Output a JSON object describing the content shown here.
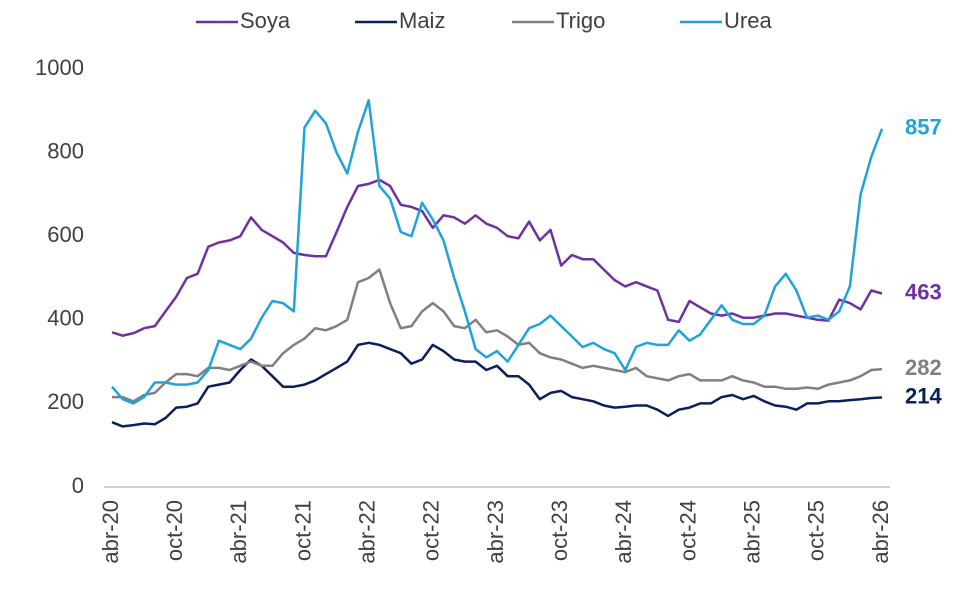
{
  "chart_data": {
    "type": "line",
    "categories": [
      "abr-20",
      null,
      null,
      null,
      null,
      null,
      "oct-20",
      null,
      null,
      null,
      null,
      null,
      "abr-21",
      null,
      null,
      null,
      null,
      null,
      "oct-21",
      null,
      null,
      null,
      null,
      null,
      "abr-22",
      null,
      null,
      null,
      null,
      null,
      "oct-22",
      null,
      null,
      null,
      null,
      null,
      "abr-23",
      null,
      null,
      null,
      null,
      null,
      "oct-23",
      null,
      null,
      null,
      null,
      null,
      "abr-24",
      null,
      null,
      null,
      null,
      null,
      "oct-24",
      null,
      null,
      null,
      null,
      null,
      "abr-25",
      null,
      null,
      null,
      null,
      null,
      "oct-25",
      null,
      null,
      null,
      null,
      null,
      "abr-26"
    ],
    "series": [
      {
        "name": "Soya",
        "color": "#7030a0",
        "values": [
          370,
          362,
          368,
          380,
          385,
          420,
          455,
          500,
          510,
          575,
          585,
          590,
          600,
          645,
          615,
          600,
          585,
          560,
          555,
          552,
          552,
          610,
          670,
          720,
          725,
          735,
          720,
          675,
          670,
          660,
          620,
          650,
          645,
          630,
          650,
          630,
          620,
          600,
          595,
          635,
          590,
          615,
          530,
          555,
          545,
          545,
          520,
          495,
          480,
          490,
          480,
          470,
          400,
          395,
          445,
          430,
          415,
          410,
          415,
          405,
          405,
          410,
          415,
          415,
          410,
          405,
          400,
          398,
          448,
          440,
          425,
          470,
          463
        ]
      },
      {
        "name": "Maiz",
        "color": "#0b1f5c",
        "values": [
          155,
          145,
          148,
          152,
          150,
          165,
          190,
          192,
          200,
          240,
          245,
          250,
          280,
          305,
          290,
          265,
          240,
          240,
          245,
          255,
          270,
          285,
          300,
          340,
          345,
          340,
          330,
          320,
          295,
          305,
          340,
          325,
          305,
          300,
          300,
          280,
          290,
          265,
          265,
          245,
          210,
          225,
          230,
          215,
          210,
          205,
          195,
          190,
          192,
          195,
          195,
          185,
          170,
          185,
          190,
          200,
          200,
          215,
          220,
          210,
          218,
          205,
          195,
          192,
          185,
          200,
          200,
          205,
          205,
          208,
          210,
          213,
          214
        ]
      },
      {
        "name": "Trigo",
        "color": "#808080",
        "values": [
          215,
          215,
          205,
          220,
          225,
          250,
          270,
          270,
          265,
          285,
          285,
          280,
          290,
          300,
          290,
          290,
          320,
          340,
          355,
          380,
          375,
          385,
          400,
          490,
          500,
          520,
          440,
          380,
          385,
          420,
          440,
          420,
          385,
          380,
          400,
          370,
          375,
          360,
          340,
          345,
          320,
          310,
          305,
          295,
          285,
          290,
          285,
          280,
          275,
          285,
          265,
          260,
          255,
          265,
          270,
          255,
          255,
          255,
          265,
          255,
          250,
          240,
          240,
          235,
          235,
          238,
          235,
          245,
          250,
          255,
          265,
          280,
          282
        ]
      },
      {
        "name": "Urea",
        "color": "#1fa3d8",
        "values": [
          240,
          210,
          200,
          215,
          250,
          250,
          245,
          245,
          250,
          280,
          350,
          340,
          330,
          355,
          405,
          445,
          440,
          420,
          860,
          900,
          870,
          800,
          750,
          850,
          925,
          720,
          690,
          610,
          600,
          680,
          640,
          590,
          500,
          420,
          330,
          310,
          325,
          300,
          340,
          380,
          390,
          410,
          385,
          360,
          335,
          345,
          330,
          320,
          280,
          335,
          345,
          340,
          340,
          375,
          350,
          365,
          400,
          435,
          400,
          390,
          390,
          410,
          480,
          510,
          470,
          405,
          410,
          400,
          420,
          480,
          700,
          790,
          857
        ]
      }
    ],
    "ylim": [
      0,
      1000
    ],
    "yticks": [
      0,
      200,
      400,
      600,
      800,
      1000
    ],
    "grid": false,
    "legend": "top"
  }
}
